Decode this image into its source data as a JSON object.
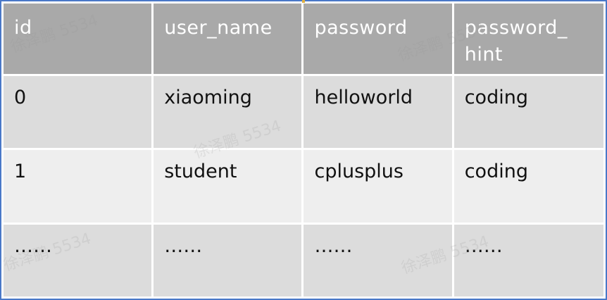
{
  "table": {
    "headers": [
      "id",
      "user_name",
      "password",
      "password_\nhint"
    ],
    "rows": [
      [
        "0",
        "xiaoming",
        "helloworld",
        "coding"
      ],
      [
        "1",
        "student",
        "cplusplus",
        "coding"
      ],
      [
        "……",
        "……",
        "……",
        "……"
      ]
    ]
  },
  "watermarks": [
    "徐泽鹏 5534",
    "徐泽鹏 5534",
    "徐泽鹏 5534",
    "徐泽鹏 5534",
    "徐泽鹏 5534"
  ],
  "colors": {
    "header_bg": "#a9a9a9",
    "row_dark": "#dcdcdc",
    "row_light": "#eeeeee",
    "frame_border": "#4a78c8"
  }
}
